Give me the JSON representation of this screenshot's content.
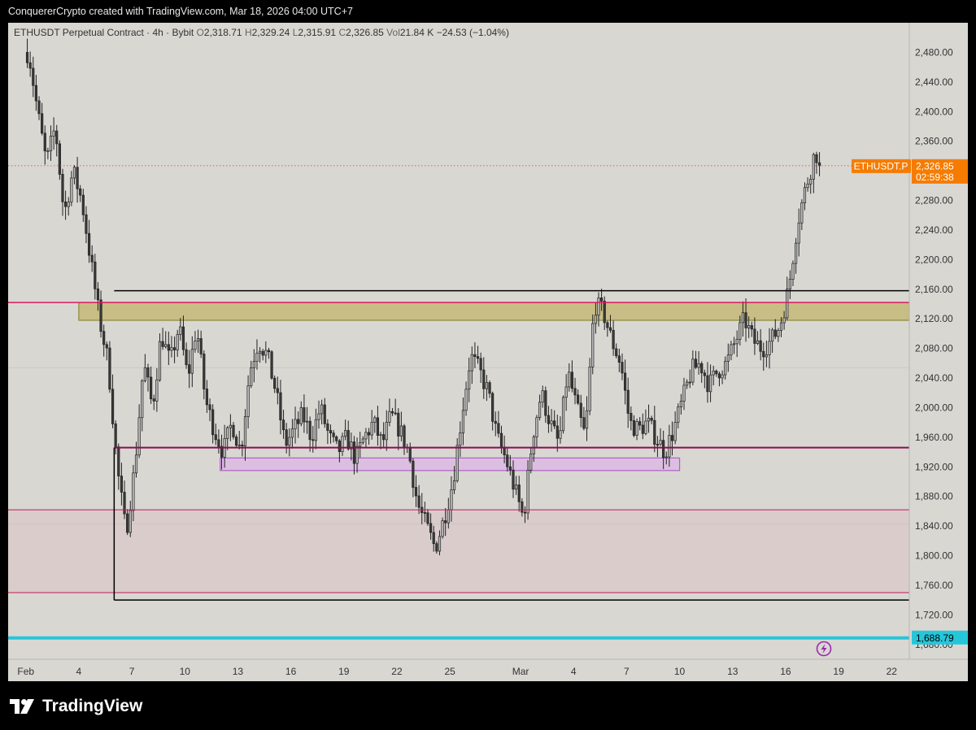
{
  "header": {
    "caption": "ConquererCrypto created with TradingView.com, Mar 18, 2026 04:00 UTC+7"
  },
  "legend": {
    "symbol": "ETHUSDT Perpetual Contract · 4h · Bybit",
    "o_label": "O",
    "o": "2,318.71",
    "h_label": "H",
    "h": "2,329.24",
    "l_label": "L",
    "l": "2,315.91",
    "c_label": "C",
    "c": "2,326.85",
    "vol_label": "Vol",
    "vol": "21.84 K",
    "change": "−24.53 (−1.04%)"
  },
  "price_tag": {
    "symbol": "ETHUSDT.P",
    "price": "2,326.85",
    "countdown": "02:59:38",
    "color": "#f57c00"
  },
  "level_tag": {
    "price": "1,688.79",
    "color": "#26c6da"
  },
  "logo": {
    "text": "TradingView"
  },
  "chart_data": {
    "type": "candlestick",
    "timeframe": "4h",
    "ylim": [
      1660,
      2520
    ],
    "y_ticks": [
      1680,
      1720,
      1760,
      1800,
      1840,
      1880,
      1920,
      1960,
      2000,
      2040,
      2080,
      2120,
      2160,
      2200,
      2240,
      2280,
      2320,
      2360,
      2400,
      2440,
      2480
    ],
    "y_tick_labels": [
      "1,680.00",
      "1,720.00",
      "1,760.00",
      "1,800.00",
      "1,840.00",
      "1,880.00",
      "1,920.00",
      "1,960.00",
      "2,000.00",
      "2,040.00",
      "2,080.00",
      "2,120.00",
      "2,160.00",
      "2,200.00",
      "2,240.00",
      "2,280.00",
      "2,320.00",
      "2,360.00",
      "2,400.00",
      "2,440.00",
      "2,480.00"
    ],
    "x_start": "2026-01-31",
    "x_end": "2026-03-23",
    "x_ticks": [
      {
        "date": "2026-02-01",
        "label": "Feb"
      },
      {
        "date": "2026-02-04",
        "label": "4"
      },
      {
        "date": "2026-02-07",
        "label": "7"
      },
      {
        "date": "2026-02-10",
        "label": "10"
      },
      {
        "date": "2026-02-13",
        "label": "13"
      },
      {
        "date": "2026-02-16",
        "label": "16"
      },
      {
        "date": "2026-02-19",
        "label": "19"
      },
      {
        "date": "2026-02-22",
        "label": "22"
      },
      {
        "date": "2026-02-25",
        "label": "25"
      },
      {
        "date": "2026-03-01",
        "label": "Mar"
      },
      {
        "date": "2026-03-04",
        "label": "4"
      },
      {
        "date": "2026-03-07",
        "label": "7"
      },
      {
        "date": "2026-03-10",
        "label": "10"
      },
      {
        "date": "2026-03-13",
        "label": "13"
      },
      {
        "date": "2026-03-16",
        "label": "16"
      },
      {
        "date": "2026-03-19",
        "label": "19"
      },
      {
        "date": "2026-03-22",
        "label": "22"
      }
    ],
    "path_points": [
      [
        "2026-02-01",
        2480
      ],
      [
        "2026-02-01",
        2400
      ],
      [
        "2026-02-02",
        2330
      ],
      [
        "2026-02-02",
        2380
      ],
      [
        "2026-02-03",
        2260
      ],
      [
        "2026-02-03",
        2320
      ],
      [
        "2026-02-04",
        2280
      ],
      [
        "2026-02-04",
        2200
      ],
      [
        "2026-02-05",
        2120
      ],
      [
        "2026-02-05",
        2060
      ],
      [
        "2026-02-06",
        1920
      ],
      [
        "2026-02-06",
        1830
      ],
      [
        "2026-02-07",
        1920
      ],
      [
        "2026-02-07",
        2060
      ],
      [
        "2026-02-08",
        2000
      ],
      [
        "2026-02-08",
        2100
      ],
      [
        "2026-02-09",
        2060
      ],
      [
        "2026-02-09",
        2110
      ],
      [
        "2026-02-10",
        2040
      ],
      [
        "2026-02-10",
        2110
      ],
      [
        "2026-02-11",
        2010
      ],
      [
        "2026-02-11",
        1970
      ],
      [
        "2026-02-12",
        1940
      ],
      [
        "2026-02-12",
        1980
      ],
      [
        "2026-02-13",
        1940
      ],
      [
        "2026-02-13",
        2050
      ],
      [
        "2026-02-14",
        2090
      ],
      [
        "2026-02-14",
        2070
      ],
      [
        "2026-02-15",
        2020
      ],
      [
        "2026-02-15",
        1950
      ],
      [
        "2026-02-16",
        1970
      ],
      [
        "2026-02-16",
        1990
      ],
      [
        "2026-02-17",
        1960
      ],
      [
        "2026-02-17",
        2000
      ],
      [
        "2026-02-18",
        1960
      ],
      [
        "2026-02-18",
        1940
      ],
      [
        "2026-02-19",
        1960
      ],
      [
        "2026-02-19",
        1930
      ],
      [
        "2026-02-20",
        1960
      ],
      [
        "2026-02-20",
        1980
      ],
      [
        "2026-02-21",
        1950
      ],
      [
        "2026-02-21",
        1990
      ],
      [
        "2026-02-22",
        1970
      ],
      [
        "2026-02-22",
        1940
      ],
      [
        "2026-02-23",
        1870
      ],
      [
        "2026-02-23",
        1840
      ],
      [
        "2026-02-24",
        1810
      ],
      [
        "2026-02-24",
        1850
      ],
      [
        "2026-02-25",
        1900
      ],
      [
        "2026-02-25",
        1990
      ],
      [
        "2026-02-26",
        2070
      ],
      [
        "2026-02-26",
        2050
      ],
      [
        "2026-02-27",
        2020
      ],
      [
        "2026-02-27",
        1960
      ],
      [
        "2026-02-28",
        1930
      ],
      [
        "2026-02-28",
        1890
      ],
      [
        "2026-03-01",
        1850
      ],
      [
        "2026-03-01",
        1960
      ],
      [
        "2026-03-02",
        2020
      ],
      [
        "2026-03-02",
        1980
      ],
      [
        "2026-03-03",
        1950
      ],
      [
        "2026-03-03",
        2050
      ],
      [
        "2026-03-04",
        2000
      ],
      [
        "2026-03-04",
        1960
      ],
      [
        "2026-03-05",
        2140
      ],
      [
        "2026-03-05",
        2130
      ],
      [
        "2026-03-06",
        2090
      ],
      [
        "2026-03-06",
        2060
      ],
      [
        "2026-03-07",
        1980
      ],
      [
        "2026-03-07",
        1970
      ],
      [
        "2026-03-08",
        1980
      ],
      [
        "2026-03-08",
        1960
      ],
      [
        "2026-03-09",
        1940
      ],
      [
        "2026-03-09",
        1970
      ],
      [
        "2026-03-10",
        2010
      ],
      [
        "2026-03-10",
        2050
      ],
      [
        "2026-03-11",
        2060
      ],
      [
        "2026-03-11",
        2030
      ],
      [
        "2026-03-12",
        2050
      ],
      [
        "2026-03-12",
        2060
      ],
      [
        "2026-03-13",
        2090
      ],
      [
        "2026-03-13",
        2120
      ],
      [
        "2026-03-14",
        2090
      ],
      [
        "2026-03-14",
        2080
      ],
      [
        "2026-03-15",
        2090
      ],
      [
        "2026-03-15",
        2110
      ],
      [
        "2026-03-16",
        2160
      ],
      [
        "2026-03-16",
        2250
      ],
      [
        "2026-03-17",
        2300
      ],
      [
        "2026-03-17",
        2345
      ],
      [
        "2026-03-18",
        2330
      ],
      [
        "2026-03-18",
        2327
      ]
    ],
    "last_price": 2326.85,
    "levels": [
      {
        "kind": "hline",
        "price": 2142,
        "color": "#d81b60",
        "from": "start",
        "width": 1.5
      },
      {
        "kind": "hline",
        "price": 1946,
        "color": "#880e4f",
        "from": "2026-02-06",
        "width": 2
      },
      {
        "kind": "hline",
        "price": 1862,
        "color": "#c2185b",
        "from": "start",
        "width": 1
      },
      {
        "kind": "hline",
        "price": 1750,
        "color": "#c2185b",
        "from": "start",
        "width": 1
      },
      {
        "kind": "hline",
        "price": 1688.79,
        "color": "#26c6da",
        "from": "start",
        "width": 4
      },
      {
        "kind": "hline",
        "price": 2158,
        "color": "#000000",
        "from": "2026-02-06",
        "width": 1.5
      },
      {
        "kind": "hline",
        "price": 1740,
        "color": "#000000",
        "from": "2026-02-06",
        "width": 1.5
      },
      {
        "kind": "vline",
        "date": "2026-02-06",
        "from_price": 1740,
        "to_price": 1946,
        "color": "#000000",
        "width": 1.5
      }
    ],
    "zones": [
      {
        "from": "2026-02-04",
        "to": "end",
        "top": 2142,
        "bottom": 2118,
        "fill": "#c8bd84",
        "stroke": "#8d8a3a"
      },
      {
        "from": "2026-02-12",
        "to": "2026-03-10",
        "top": 1932,
        "bottom": 1915,
        "fill": "#dcbfe0",
        "stroke": "#b05fc9"
      },
      {
        "from": "start",
        "to": "end",
        "top": 1862,
        "bottom": 1750,
        "fill": "#d9cccb",
        "stroke": "none"
      }
    ]
  }
}
